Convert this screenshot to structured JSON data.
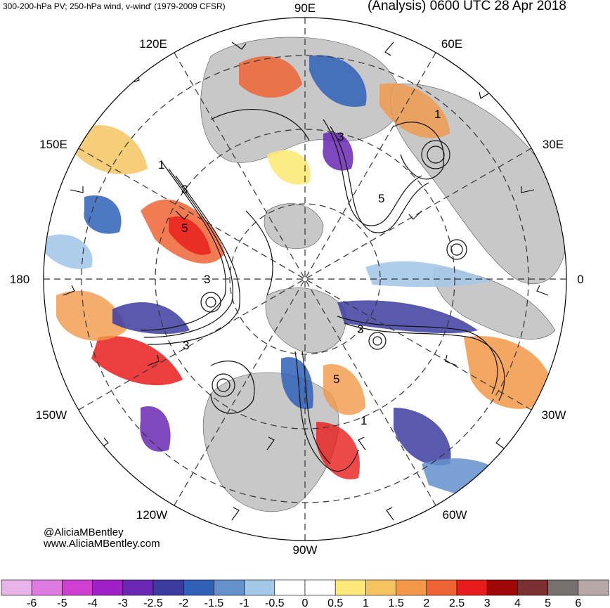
{
  "header": {
    "left_title": "300-200-hPa PV; 250-hPa wind, v-wind' (1979-2009 CFSR)",
    "right_title": "(Analysis) 0600 UTC 28 Apr 2018"
  },
  "longitude_labels": {
    "deg90e": "90E",
    "deg120e": "120E",
    "deg60e": "60E",
    "deg150e": "150E",
    "deg30e": "30E",
    "deg180": "180",
    "deg0": "0",
    "deg150w": "150W",
    "deg30w": "30W",
    "deg120w": "120W",
    "deg60w": "60W",
    "deg90w": "90W"
  },
  "contour_labels": [
    "3",
    "5",
    "1",
    "3",
    "5",
    "3",
    "3",
    "5",
    "3",
    "1",
    "1"
  ],
  "credit": {
    "handle": "@AliciaMBentley",
    "website": "www.AliciaMBentley.com"
  },
  "colorbar": {
    "ticks": [
      "-6",
      "-5",
      "-4",
      "-3",
      "-2.5",
      "-2",
      "-1.5",
      "-1",
      "-0.5",
      "0",
      "0.5",
      "1",
      "1.5",
      "2",
      "2.5",
      "3",
      "4",
      "5",
      "6"
    ],
    "colors": [
      "#e8b4e8",
      "#e07ae0",
      "#d040d0",
      "#a020c8",
      "#6a28b4",
      "#3c3ca0",
      "#3060b8",
      "#6490cc",
      "#a4c8e8",
      "#ffffff",
      "#ffffff",
      "#fce97a",
      "#f4c460",
      "#f29848",
      "#ee6434",
      "#e81c1c",
      "#a00808",
      "#7a3030",
      "#787070",
      "#b8a8a8"
    ]
  }
}
